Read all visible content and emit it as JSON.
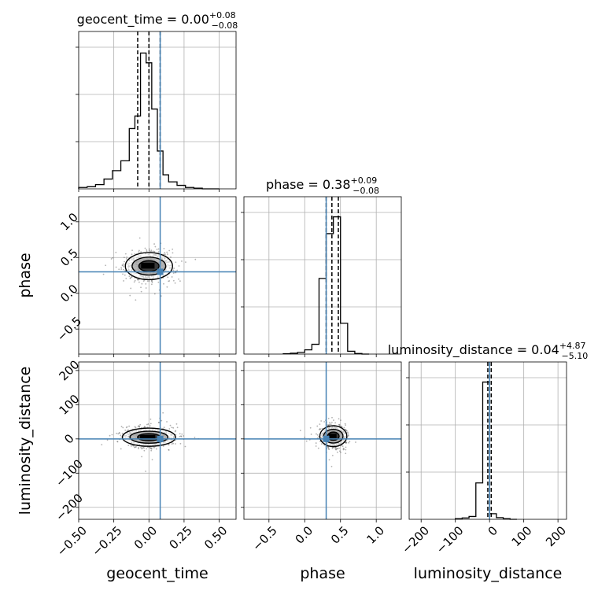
{
  "chart_data": {
    "type": "corner",
    "grid": true,
    "truth_color": "#4682b4",
    "params": [
      {
        "name": "geocent_time",
        "axis_label": "geocent_time",
        "title_prefix": "geocent_time = ",
        "median_text": "0.00",
        "err_plus": "+0.08",
        "err_minus": "−0.08",
        "range": [
          -0.5,
          0.62
        ],
        "ticks": [
          -0.5,
          -0.25,
          0.0,
          0.25,
          0.5
        ],
        "tick_labels": [
          "−0.50",
          "−0.25",
          "0.00",
          "0.25",
          "0.50"
        ],
        "truth": 0.08,
        "quantiles": [
          -0.08,
          0.0,
          0.08
        ],
        "hist": {
          "edges": [
            -0.5,
            -0.44,
            -0.38,
            -0.32,
            -0.26,
            -0.2,
            -0.14,
            -0.1,
            -0.06,
            -0.02,
            0.02,
            0.06,
            0.1,
            0.14,
            0.2,
            0.26,
            0.32,
            0.38,
            0.44,
            0.5
          ],
          "counts": [
            0.01,
            0.015,
            0.03,
            0.07,
            0.13,
            0.2,
            0.43,
            0.52,
            0.97,
            0.9,
            0.57,
            0.27,
            0.1,
            0.05,
            0.025,
            0.01,
            0.005,
            0,
            0
          ]
        }
      },
      {
        "name": "phase",
        "axis_label": "phase",
        "title_prefix": "phase = ",
        "median_text": "0.38",
        "err_plus": "+0.09",
        "err_minus": "−0.08",
        "range": [
          -0.85,
          1.35
        ],
        "ticks": [
          -0.5,
          0.0,
          0.5,
          1.0
        ],
        "tick_labels": [
          "−0.5",
          "0.0",
          "0.5",
          "1.0"
        ],
        "truth": 0.3,
        "quantiles": [
          0.3,
          0.38,
          0.47
        ],
        "hist": {
          "edges": [
            -0.3,
            -0.2,
            -0.1,
            0.0,
            0.1,
            0.2,
            0.3,
            0.4,
            0.5,
            0.6,
            0.7,
            0.8,
            0.9
          ],
          "counts": [
            0.003,
            0.006,
            0.012,
            0.03,
            0.07,
            0.54,
            0.86,
            0.98,
            0.22,
            0.02,
            0.004,
            0
          ]
        }
      },
      {
        "name": "luminosity_distance",
        "axis_label": "luminosity_distance",
        "title_prefix": "luminosity_distance = ",
        "median_text": "0.04",
        "err_plus": "+4.87",
        "err_minus": "−5.10",
        "range": [
          -235,
          225
        ],
        "ticks": [
          -200,
          -100,
          0,
          100,
          200
        ],
        "tick_labels": [
          "−200",
          "−100",
          "0",
          "100",
          "200"
        ],
        "truth": 0,
        "quantiles": [
          -5.1,
          0.04,
          4.9
        ],
        "hist": {
          "edges": [
            -100,
            -80,
            -60,
            -40,
            -20,
            0,
            20,
            40,
            60,
            80
          ],
          "counts": [
            0.005,
            0.01,
            0.02,
            0.26,
            0.98,
            0.04,
            0.012,
            0.005,
            0
          ]
        }
      }
    ],
    "pairs": [
      {
        "row": 1,
        "col": 0,
        "center": [
          0.0,
          0.38
        ],
        "sigma": [
          0.08,
          0.1
        ],
        "points": 700
      },
      {
        "row": 2,
        "col": 0,
        "center": [
          0.0,
          5
        ],
        "sigma": [
          0.09,
          14
        ],
        "points": 700
      },
      {
        "row": 2,
        "col": 1,
        "center": [
          0.4,
          8
        ],
        "sigma": [
          0.09,
          16
        ],
        "points": 600
      }
    ]
  }
}
